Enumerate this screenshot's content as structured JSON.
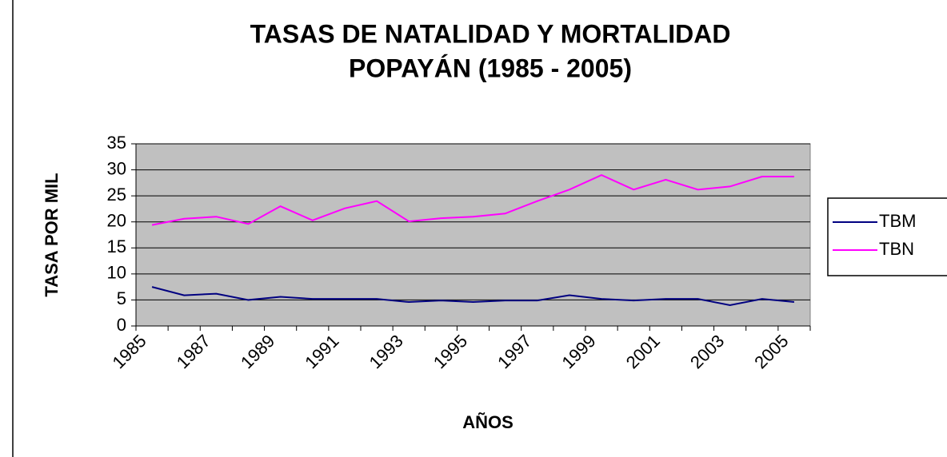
{
  "chart_data": {
    "type": "line",
    "title": [
      "TASAS DE NATALIDAD Y MORTALIDAD",
      "POPAYÁN (1985 - 2005)"
    ],
    "xlabel": "AÑOS",
    "ylabel": "TASA POR MIL",
    "categories": [
      "1985",
      null,
      "1987",
      null,
      "1989",
      null,
      "1991",
      null,
      "1993",
      null,
      "1995",
      null,
      "1997",
      null,
      "1999",
      null,
      "2001",
      null,
      "2003",
      null,
      "2005"
    ],
    "series": [
      {
        "name": "TBM",
        "color": "#000080",
        "values": [
          7.5,
          5.9,
          6.2,
          5,
          5.6,
          5.2,
          5.2,
          5.2,
          4.6,
          4.9,
          4.6,
          4.9,
          4.9,
          5.9,
          5.2,
          4.9,
          5.2,
          5.2,
          4,
          5.2,
          4.6
        ]
      },
      {
        "name": "TBN",
        "color": "#ff00ff",
        "values": [
          19.4,
          20.6,
          21,
          19.6,
          23,
          20.3,
          22.6,
          24,
          20.1,
          20.7,
          21,
          21.6,
          24,
          26.2,
          29,
          26.2,
          28.1,
          26.2,
          26.8,
          28.7,
          28.7
        ]
      }
    ],
    "ylim": [
      0,
      35
    ],
    "yticks": [
      0,
      5,
      10,
      15,
      20,
      25,
      30,
      35
    ],
    "grid": true,
    "legend": "right"
  }
}
